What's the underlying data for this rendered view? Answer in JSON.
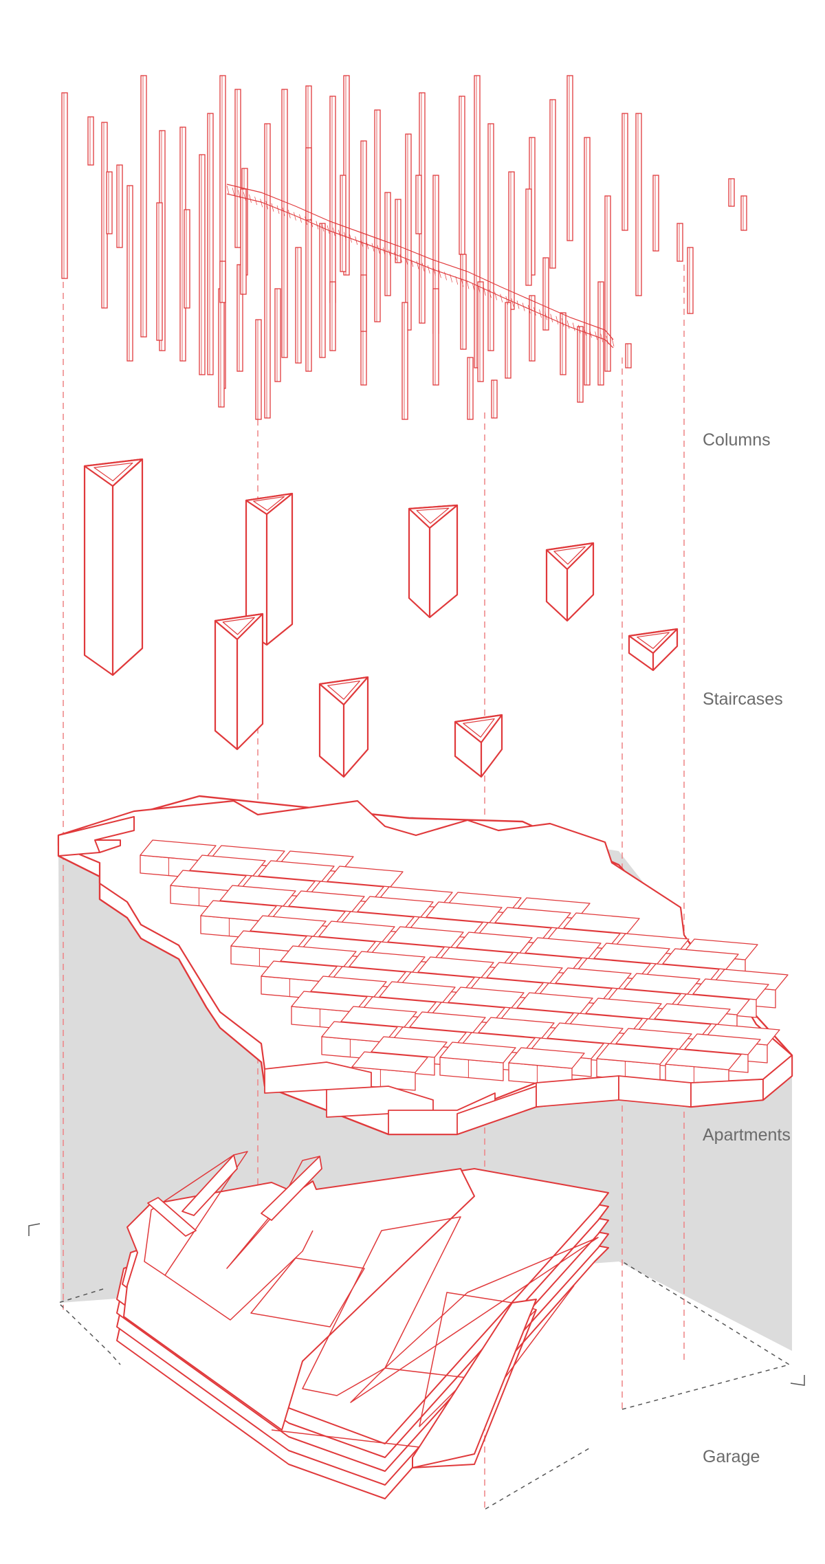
{
  "layers": [
    {
      "id": "columns",
      "label": "Columns"
    },
    {
      "id": "staircases",
      "label": "Staircases"
    },
    {
      "id": "apartments",
      "label": "Apartments"
    },
    {
      "id": "garage",
      "label": "Garage"
    }
  ],
  "colors": {
    "line": "#e0393b",
    "line_light": "#ee8283",
    "shadow": "#dcdcdc",
    "label": "#6b6b6b",
    "dash_dark": "#555555"
  }
}
